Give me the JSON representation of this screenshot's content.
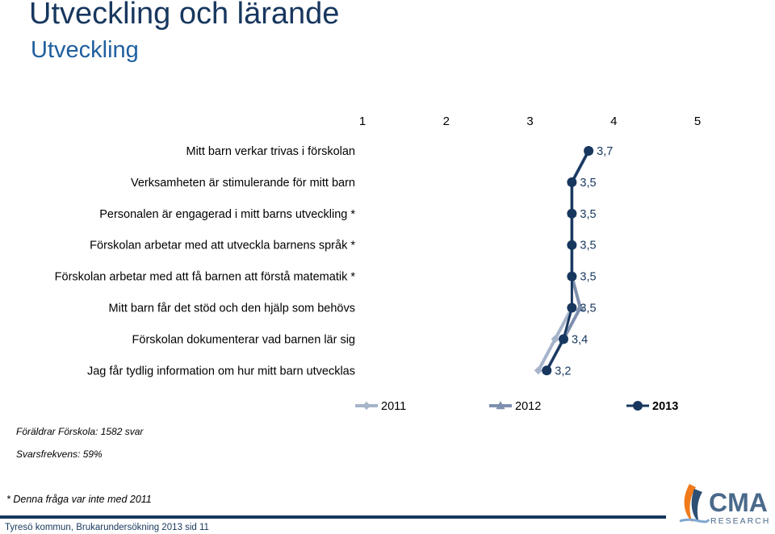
{
  "header": {
    "title": "Utveckling och lärande",
    "subtitle": "Utveckling"
  },
  "notes": {
    "respondents": "Föräldrar Förskola: 1582 svar",
    "response_rate": "Svarsfrekvens: 59%",
    "footnote": "* Denna fråga var inte med 2011"
  },
  "footer": {
    "text": "Tyresö kommun, Brukarundersökning 2013 sid 11"
  },
  "logo": {
    "text": "CMA",
    "subtext": "RESEARCH"
  },
  "colors": {
    "s2011": "#a6b4ca",
    "s2012": "#7e8fae",
    "s2013": "#17375e",
    "logo_main": "#4a6a8a",
    "logo_accent": "#f07a1a"
  },
  "chart_data": {
    "type": "line",
    "orientation": "horizontal",
    "categories": [
      "Mitt barn verkar trivas i förskolan",
      "Verksamheten är stimulerande för mitt barn",
      "Personalen är engagerad i mitt barns utveckling *",
      "Förskolan arbetar med att utveckla barnens språk *",
      "Förskolan arbetar med att få barnen att förstå matematik *",
      "Mitt barn får det stöd och den hjälp som behövs",
      "Förskolan dokumenterar vad barnen lär sig",
      "Jag får tydlig information om hur mitt barn utvecklas"
    ],
    "xlim": [
      1,
      5
    ],
    "xticks": [
      "1",
      "2",
      "3",
      "4",
      "5"
    ],
    "series": [
      {
        "name": "2011",
        "marker": "diamond",
        "values": [
          3.7,
          3.5,
          null,
          null,
          null,
          3.5,
          3.3,
          3.1
        ]
      },
      {
        "name": "2012",
        "marker": "triangle",
        "values": [
          3.7,
          3.5,
          3.5,
          3.5,
          3.5,
          3.6,
          3.4,
          3.2
        ]
      },
      {
        "name": "2013",
        "marker": "circle",
        "values": [
          3.7,
          3.5,
          3.5,
          3.5,
          3.5,
          3.5,
          3.4,
          3.2
        ]
      }
    ],
    "data_labels": [
      "3,7",
      "3,5",
      "3,5",
      "3,5",
      "3,5",
      "3,5",
      "3,4",
      "3,2"
    ],
    "legend": {
      "position": "bottom",
      "items": [
        "2011",
        "2012",
        "2013"
      ]
    }
  }
}
